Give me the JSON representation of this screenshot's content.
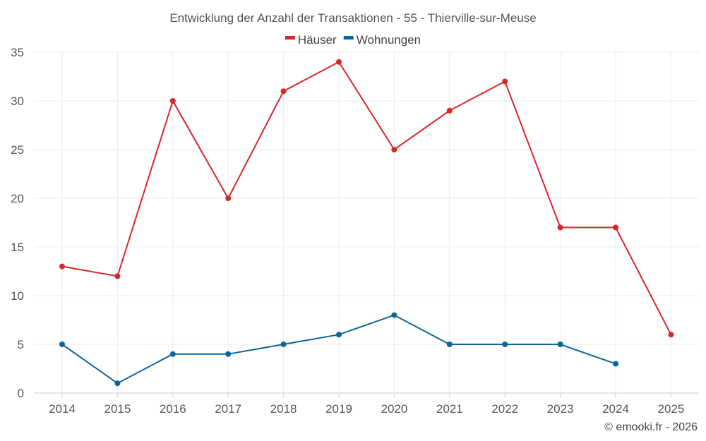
{
  "chart_data": {
    "type": "line",
    "title": "Entwicklung der Anzahl der Transaktionen - 55 - Thierville-sur-Meuse",
    "categories": [
      "2014",
      "2015",
      "2016",
      "2017",
      "2018",
      "2019",
      "2020",
      "2021",
      "2022",
      "2023",
      "2024",
      "2025"
    ],
    "ylim": [
      0,
      35
    ],
    "yticks": [
      0,
      5,
      10,
      15,
      20,
      25,
      30,
      35
    ],
    "grid": true,
    "legend_position": "top-center",
    "series": [
      {
        "name": "Häuser",
        "color": "#d62728",
        "values": [
          13,
          12,
          30,
          20,
          31,
          34,
          25,
          29,
          32,
          17,
          17,
          6
        ]
      },
      {
        "name": "Wohnungen",
        "color": "#0d6699",
        "values": [
          5,
          1,
          4,
          4,
          5,
          6,
          8,
          5,
          5,
          5,
          3,
          null
        ]
      }
    ],
    "credit": "© emooki.fr - 2026"
  }
}
